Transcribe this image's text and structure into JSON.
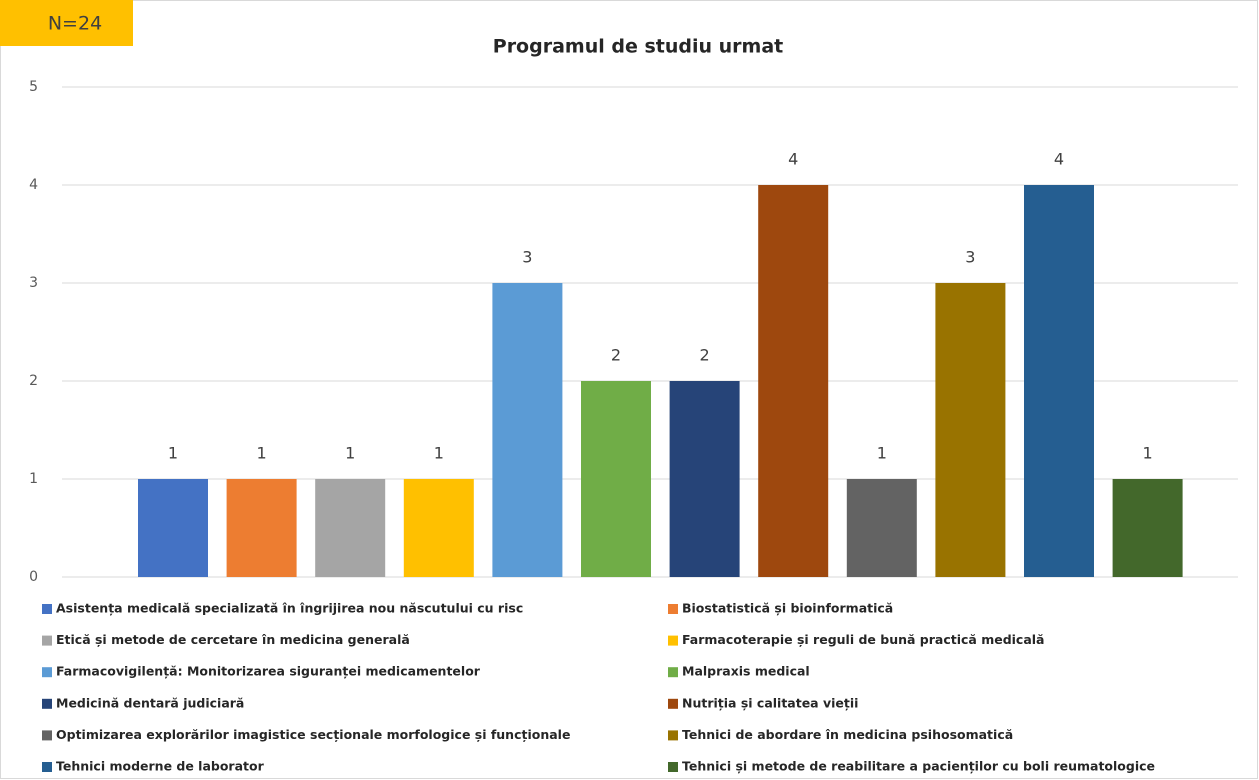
{
  "chart_data": {
    "type": "bar",
    "title": "Programul de studiu urmat",
    "annotation": "N=24",
    "ylim": [
      0,
      5
    ],
    "yticks": [
      0,
      1,
      2,
      3,
      4,
      5
    ],
    "grid": true,
    "legend": "bottom",
    "series": [
      {
        "name": "Asistența medicală specializată în îngrijirea nou născutului cu risc",
        "color": "#4472c4",
        "values": [
          1
        ]
      },
      {
        "name": "Biostatistică și bioinformatică",
        "color": "#ed7d31",
        "values": [
          1
        ]
      },
      {
        "name": "Etică și metode de cercetare în medicina generală",
        "color": "#a5a5a5",
        "values": [
          1
        ]
      },
      {
        "name": "Farmacoterapie și reguli de bună practică medicală",
        "color": "#ffc000",
        "values": [
          1
        ]
      },
      {
        "name": "Farmacovigilență: Monitorizarea siguranței medicamentelor",
        "color": "#5b9bd5",
        "values": [
          3
        ]
      },
      {
        "name": "Malpraxis medical",
        "color": "#70ad47",
        "values": [
          2
        ]
      },
      {
        "name": "Medicină dentară judiciară",
        "color": "#264478",
        "values": [
          2
        ]
      },
      {
        "name": "Nutriția și calitatea vieții",
        "color": "#9e480e",
        "values": [
          4
        ]
      },
      {
        "name": "Optimizarea explorărilor imagistice secționale morfologice și funcționale",
        "color": "#636363",
        "values": [
          1
        ]
      },
      {
        "name": "Tehnici de abordare în medicina psihosomatică",
        "color": "#997300",
        "values": [
          3
        ]
      },
      {
        "name": "Tehnici moderne de laborator",
        "color": "#255e91",
        "values": [
          4
        ]
      },
      {
        "name": "Tehnici și metode de reabilitare a pacienților cu boli reumatologice",
        "color": "#43682b",
        "values": [
          1
        ]
      }
    ]
  }
}
